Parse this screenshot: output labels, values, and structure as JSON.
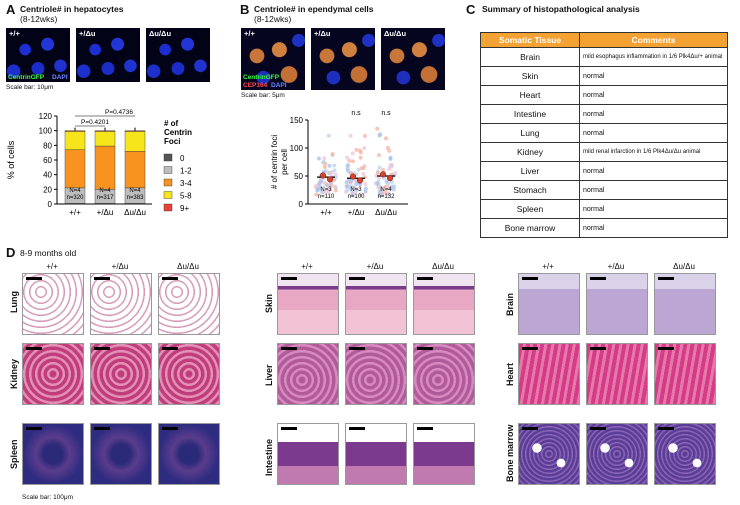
{
  "panelA": {
    "letter": "A",
    "title": "Centriole# in hepatocytes",
    "subtitle": "(8-12wks)",
    "images": [
      "+/+",
      "+/Δu",
      "Δu/Δu"
    ],
    "stain1": "CentrinGFP",
    "stain2": "DAPI",
    "scale": "Scale bar: 10μm",
    "pval1": "P=0.4201",
    "pval2": "P=0.4736"
  },
  "panelB": {
    "letter": "B",
    "title": "Centriole# in ependymal cells",
    "subtitle": "(8-12wks)",
    "images": [
      "+/+",
      "+/Δu",
      "Δu/Δu"
    ],
    "stain1": "CentrinGFP",
    "stain2": "CEP164",
    "stain3": "DAPI",
    "scale": "Scale bar: 5μm",
    "ns1": "n.s",
    "ns2": "n.s"
  },
  "panelC": {
    "letter": "C",
    "title": "Summary of histopathological analysis",
    "header_tissue": "Somatic Tissue",
    "header_comments": "Comments",
    "rows": [
      {
        "tissue": "Brain",
        "comment": "mild esophagus inflammation in 1/6 Plk4Δu/+ animal"
      },
      {
        "tissue": "Skin",
        "comment": "normal"
      },
      {
        "tissue": "Heart",
        "comment": "normal"
      },
      {
        "tissue": "Intestine",
        "comment": "normal"
      },
      {
        "tissue": "Lung",
        "comment": "normal"
      },
      {
        "tissue": "Kidney",
        "comment": "mild renal infarction in 1/6 Plk4Δu/Δu animal"
      },
      {
        "tissue": "Liver",
        "comment": "normal"
      },
      {
        "tissue": "Stomach",
        "comment": "normal"
      },
      {
        "tissue": "Spleen",
        "comment": "normal"
      },
      {
        "tissue": "Bone marrow",
        "comment": "normal"
      }
    ]
  },
  "panelD": {
    "letter": "D",
    "title": "8-9 months old",
    "genotypes": [
      "+/+",
      "+/Δu",
      "Δu/Δu"
    ],
    "groups": [
      [
        "Lung",
        "Kidney",
        "Spleen"
      ],
      [
        "Skin",
        "Liver",
        "Intestine"
      ],
      [
        "Brain",
        "Heart",
        "Bone marrow"
      ]
    ],
    "scale": "Scale bar: 100μm"
  },
  "chart_data": [
    {
      "type": "bar",
      "stacked": true,
      "categories": [
        "+/+",
        "+/Δu",
        "Δu/Δu"
      ],
      "ylabel": "% of cells",
      "ylim": [
        0,
        120
      ],
      "yticks": [
        0,
        20,
        40,
        60,
        80,
        100,
        120
      ],
      "legend_title": "# of Centrin Foci",
      "series": [
        {
          "name": "0",
          "color": "#555555",
          "values": [
            1,
            1,
            1
          ]
        },
        {
          "name": "1-2",
          "color": "#bdbdbd",
          "values": [
            21,
            19,
            21
          ]
        },
        {
          "name": "3-4",
          "color": "#f7931e",
          "values": [
            52,
            59,
            50
          ]
        },
        {
          "name": "5-8",
          "color": "#f6e51b",
          "values": [
            25,
            20,
            27
          ]
        },
        {
          "name": "9+",
          "color": "#e8423a",
          "values": [
            1,
            1,
            1
          ]
        }
      ],
      "annotations": [
        [
          "N=4",
          "n=320"
        ],
        [
          "N=4",
          "n=317"
        ],
        [
          "N=4",
          "n=383"
        ]
      ]
    },
    {
      "type": "scatter",
      "categories": [
        "+/+",
        "+/Δu",
        "Δu/Δu"
      ],
      "ylabel": "# of centrin foci per cell",
      "ylim": [
        0,
        150
      ],
      "yticks": [
        0,
        50,
        100,
        150
      ],
      "means": [
        48,
        46,
        50
      ],
      "annotations": [
        [
          "N=3",
          "n=110"
        ],
        [
          "N=3",
          "n=100"
        ],
        [
          "N=4",
          "n=132"
        ]
      ]
    }
  ]
}
